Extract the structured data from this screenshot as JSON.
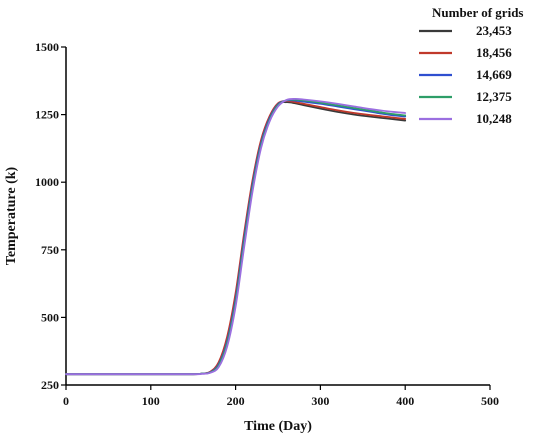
{
  "chart_data": {
    "type": "line",
    "title": "",
    "xlabel": "Time (Day)",
    "ylabel": "Temperature (k)",
    "xlim": [
      0,
      500
    ],
    "ylim": [
      250,
      1500
    ],
    "x_ticks": [
      0,
      100,
      200,
      300,
      400,
      500
    ],
    "y_ticks": [
      250,
      500,
      750,
      1000,
      1250,
      1500
    ],
    "grid": false,
    "legend": {
      "title": "Number of grids",
      "placement": "top-right, outside plot"
    },
    "x": [
      0,
      100,
      150,
      160,
      170,
      180,
      190,
      200,
      210,
      220,
      230,
      240,
      250,
      260,
      270,
      280,
      300,
      320,
      340,
      360,
      380,
      400
    ],
    "series": [
      {
        "name": "23,453",
        "color": "#3a3a3a",
        "values": [
          290,
          290,
          290,
          292,
          298,
          330,
          420,
          580,
          800,
          1000,
          1150,
          1240,
          1290,
          1296,
          1292,
          1285,
          1272,
          1260,
          1250,
          1242,
          1235,
          1228
        ]
      },
      {
        "name": "18,456",
        "color": "#c0392b",
        "values": [
          290,
          290,
          290,
          292,
          299,
          334,
          428,
          590,
          810,
          1008,
          1156,
          1244,
          1292,
          1300,
          1296,
          1290,
          1278,
          1266,
          1256,
          1248,
          1241,
          1234
        ]
      },
      {
        "name": "14,669",
        "color": "#2f4fd0",
        "values": [
          290,
          290,
          290,
          292,
          297,
          326,
          412,
          568,
          790,
          992,
          1144,
          1236,
          1288,
          1302,
          1302,
          1298,
          1290,
          1280,
          1270,
          1260,
          1250,
          1243
        ]
      },
      {
        "name": "12,375",
        "color": "#2e9e68",
        "values": [
          290,
          290,
          290,
          292,
          296,
          322,
          404,
          556,
          776,
          980,
          1136,
          1230,
          1285,
          1303,
          1305,
          1302,
          1294,
          1284,
          1274,
          1264,
          1254,
          1247
        ]
      },
      {
        "name": "10,248",
        "color": "#9b6fe0",
        "values": [
          290,
          290,
          290,
          291,
          295,
          316,
          392,
          540,
          758,
          966,
          1126,
          1224,
          1280,
          1304,
          1308,
          1306,
          1299,
          1290,
          1280,
          1270,
          1262,
          1256
        ]
      }
    ]
  }
}
